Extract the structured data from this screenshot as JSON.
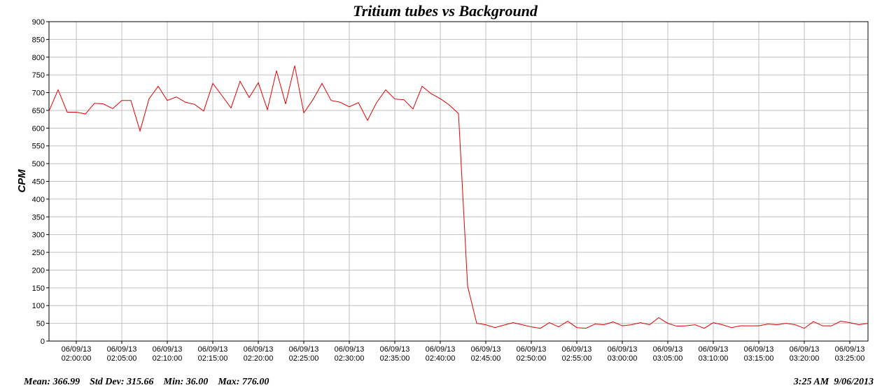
{
  "chart_data": {
    "type": "line",
    "title": "Tritium tubes vs Background",
    "ylabel": "CPM",
    "xlabel": "",
    "ylim": [
      0,
      900
    ],
    "yticks": [
      0,
      50,
      100,
      150,
      200,
      250,
      300,
      350,
      400,
      450,
      500,
      550,
      600,
      650,
      700,
      750,
      800,
      850,
      900
    ],
    "xlim": [
      "06/09/13 01:57:00",
      "06/09/13 03:27:00"
    ],
    "xtick_labels": [
      {
        "date": "06/09/13",
        "time": "02:00:00"
      },
      {
        "date": "06/09/13",
        "time": "02:05:00"
      },
      {
        "date": "06/09/13",
        "time": "02:10:00"
      },
      {
        "date": "06/09/13",
        "time": "02:15:00"
      },
      {
        "date": "06/09/13",
        "time": "02:20:00"
      },
      {
        "date": "06/09/13",
        "time": "02:25:00"
      },
      {
        "date": "06/09/13",
        "time": "02:30:00"
      },
      {
        "date": "06/09/13",
        "time": "02:35:00"
      },
      {
        "date": "06/09/13",
        "time": "02:40:00"
      },
      {
        "date": "06/09/13",
        "time": "02:45:00"
      },
      {
        "date": "06/09/13",
        "time": "02:50:00"
      },
      {
        "date": "06/09/13",
        "time": "02:55:00"
      },
      {
        "date": "06/09/13",
        "time": "03:00:00"
      },
      {
        "date": "06/09/13",
        "time": "03:05:00"
      },
      {
        "date": "06/09/13",
        "time": "03:10:00"
      },
      {
        "date": "06/09/13",
        "time": "03:15:00"
      },
      {
        "date": "06/09/13",
        "time": "03:20:00"
      },
      {
        "date": "06/09/13",
        "time": "03:25:00"
      }
    ],
    "grid": true,
    "line_color": "#e00000",
    "series": [
      {
        "x": [
          "01:57:00",
          "01:58:00",
          "01:59:00",
          "02:00:00",
          "02:01:00",
          "02:02:00",
          "02:03:00",
          "02:04:00",
          "02:05:00",
          "02:06:00",
          "02:07:00",
          "02:08:00",
          "02:09:00",
          "02:10:00",
          "02:11:00",
          "02:12:00",
          "02:13:00",
          "02:14:00",
          "02:15:00",
          "02:16:00",
          "02:17:00",
          "02:18:00",
          "02:19:00",
          "02:20:00",
          "02:21:00",
          "02:22:00",
          "02:23:00",
          "02:24:00",
          "02:25:00",
          "02:26:00",
          "02:27:00",
          "02:28:00",
          "02:29:00",
          "02:30:00",
          "02:31:00",
          "02:32:00",
          "02:33:00",
          "02:34:00",
          "02:35:00",
          "02:36:00",
          "02:37:00",
          "02:38:00",
          "02:39:00",
          "02:40:00",
          "02:41:00",
          "02:42:00",
          "02:43:00",
          "02:44:00",
          "02:45:00",
          "02:46:00",
          "02:47:00",
          "02:48:00",
          "02:49:00",
          "02:50:00",
          "02:51:00",
          "02:52:00",
          "02:53:00",
          "02:54:00",
          "02:55:00",
          "02:56:00",
          "02:57:00",
          "02:58:00",
          "02:59:00",
          "03:00:00",
          "03:01:00",
          "03:02:00",
          "03:03:00",
          "03:04:00",
          "03:05:00",
          "03:06:00",
          "03:07:00",
          "03:08:00",
          "03:09:00",
          "03:10:00",
          "03:11:00",
          "03:12:00",
          "03:13:00",
          "03:14:00",
          "03:15:00",
          "03:16:00",
          "03:17:00",
          "03:18:00",
          "03:19:00",
          "03:20:00",
          "03:21:00",
          "03:22:00",
          "03:23:00",
          "03:24:00",
          "03:25:00",
          "03:26:00",
          "03:27:00"
        ],
        "values": [
          648,
          708,
          645,
          645,
          640,
          670,
          668,
          655,
          678,
          678,
          592,
          683,
          718,
          678,
          688,
          673,
          667,
          648,
          726,
          692,
          657,
          732,
          686,
          728,
          652,
          762,
          668,
          776,
          643,
          680,
          726,
          678,
          673,
          660,
          672,
          622,
          672,
          708,
          682,
          680,
          654,
          718,
          697,
          683,
          665,
          641,
          155,
          50,
          46,
          38,
          45,
          52,
          46,
          40,
          36,
          52,
          40,
          56,
          38,
          36,
          48,
          46,
          54,
          43,
          46,
          52,
          46,
          66,
          50,
          42,
          43,
          46,
          36,
          52,
          46,
          38,
          43,
          43,
          43,
          48,
          46,
          50,
          46,
          36,
          55,
          43,
          43,
          56,
          52,
          46,
          50
        ]
      }
    ]
  },
  "stats": {
    "mean": "Mean: 366.99",
    "std_dev": "Std Dev: 315.66",
    "min": "Min: 36.00",
    "max": "Max: 776.00"
  },
  "timestamp": "3:25 AM  9/06/2013"
}
